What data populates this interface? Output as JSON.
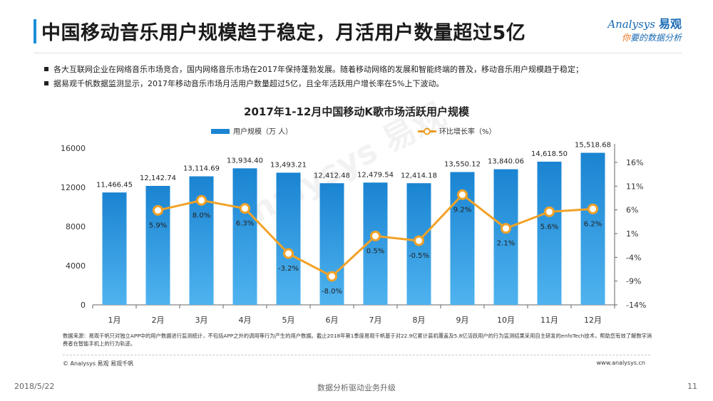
{
  "page": {
    "title": "中国移动音乐用户规模趋于稳定，月活用户数量超过5亿",
    "bullets": [
      "各大互联网企业在网络音乐市场竞合，国内网络音乐市场在2017年保持蓬勃发展。随着移动网络的发展和智能终端的普及，移动音乐用户规模趋于稳定；",
      "据易观千帆数据监测显示，2017年移动音乐市场月活用户数量超过5亿，且全年活跃用户增长率在5%上下波动。"
    ],
    "footnote": "数据来源：易观千帆只对独立APP中的用户数据进行监测统计，不包括APP之外的调用等行为产生的用户数据。截止2018年第1季度易观千帆基于对22.9亿累计装机覆盖及5.8亿活跃用户的行为监测结果采用自主研发的enfoTech技术，帮助您有效了解数字消费者在智能手机上的行为轨迹。",
    "copyright": "© Analysys 易观 易观千帆",
    "website": "www.analysys.cn",
    "date": "2018/5/22",
    "slogan": "数据分析驱动业务升级",
    "page_number": "11"
  },
  "logo": {
    "en": "Analysys",
    "cn": "易观",
    "slogan_first": "你",
    "slogan_rest": "要的数据分析"
  },
  "watermark": "Analysys 易观",
  "colors": {
    "bar": "#1a84d2",
    "bar_light": "#4fb3ef",
    "line": "#f2a227",
    "accent": "#1a8fd6"
  },
  "chart_data": {
    "type": "bar",
    "title": "2017年1-12月中国移动K歌市场活跃用户规模",
    "categories": [
      "1月",
      "2月",
      "3月",
      "4月",
      "5月",
      "6月",
      "7月",
      "8月",
      "9月",
      "10月",
      "11月",
      "12月"
    ],
    "series": [
      {
        "name": "用户规模（万 人）",
        "type": "bar",
        "axis": "left",
        "values": [
          11466.45,
          12142.74,
          13114.69,
          13934.4,
          13493.21,
          12412.48,
          12479.54,
          12414.18,
          13550.12,
          13840.06,
          14618.5,
          15518.68
        ],
        "labels": [
          "11,466.45",
          "12,142.74",
          "13,114.69",
          "13,934.40",
          "13,493.21",
          "12,412.48",
          "12,479.54",
          "12,414.18",
          "13,550.12",
          "13,840.06",
          "14,618.50",
          "15,518.68"
        ]
      },
      {
        "name": "环比增长率（%）",
        "type": "line",
        "axis": "right",
        "values": [
          null,
          5.9,
          8.0,
          6.3,
          -3.2,
          -8.0,
          0.5,
          -0.5,
          9.2,
          2.1,
          5.6,
          6.2
        ],
        "labels": [
          "",
          "5.9%",
          "8.0%",
          "6.3%",
          "-3.2%",
          "-8.0%",
          "0.5%",
          "-0.5%",
          "9.2%",
          "2.1%",
          "5.6%",
          "6.2%"
        ]
      }
    ],
    "y_left": {
      "min": 0,
      "max": 16000,
      "ticks": [
        "0",
        "4000",
        "8000",
        "12000",
        "16000"
      ]
    },
    "y_right": {
      "min": -14,
      "max": 19,
      "ticks": [
        "-14%",
        "-9%",
        "-4%",
        "1%",
        "6%",
        "11%",
        "16%"
      ]
    },
    "legend_position": "top",
    "grid": false
  }
}
